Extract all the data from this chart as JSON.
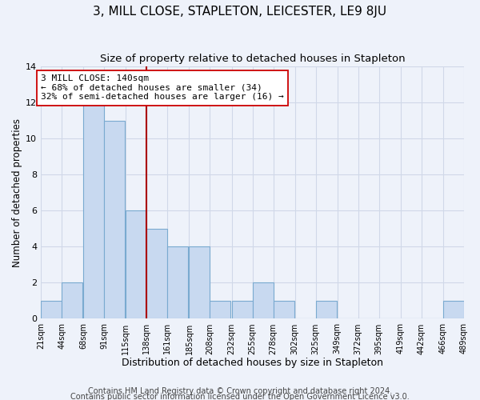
{
  "title": "3, MILL CLOSE, STAPLETON, LEICESTER, LE9 8JU",
  "subtitle": "Size of property relative to detached houses in Stapleton",
  "xlabel": "Distribution of detached houses by size in Stapleton",
  "ylabel": "Number of detached properties",
  "bar_color": "#c8d9f0",
  "bar_edgecolor": "#7aaad0",
  "bar_left_edges": [
    21,
    44,
    68,
    91,
    115,
    138,
    161,
    185,
    208,
    232,
    255,
    278,
    302,
    325,
    349,
    372,
    395,
    419,
    442,
    466
  ],
  "bar_heights": [
    1,
    2,
    12,
    11,
    6,
    5,
    4,
    4,
    1,
    1,
    2,
    1,
    0,
    1,
    0,
    0,
    0,
    0,
    0,
    1
  ],
  "bin_width": 23,
  "vline_x": 138,
  "vline_color": "#aa0000",
  "vline_linewidth": 1.5,
  "xtick_labels": [
    "21sqm",
    "44sqm",
    "68sqm",
    "91sqm",
    "115sqm",
    "138sqm",
    "161sqm",
    "185sqm",
    "208sqm",
    "232sqm",
    "255sqm",
    "278sqm",
    "302sqm",
    "325sqm",
    "349sqm",
    "372sqm",
    "395sqm",
    "419sqm",
    "442sqm",
    "466sqm",
    "489sqm"
  ],
  "xtick_positions": [
    21,
    44,
    68,
    91,
    115,
    138,
    161,
    185,
    208,
    232,
    255,
    278,
    302,
    325,
    349,
    372,
    395,
    419,
    442,
    466,
    489
  ],
  "ylim": [
    0,
    14
  ],
  "yticks": [
    0,
    2,
    4,
    6,
    8,
    10,
    12,
    14
  ],
  "annotation_text": "3 MILL CLOSE: 140sqm\n← 68% of detached houses are smaller (34)\n32% of semi-detached houses are larger (16) →",
  "annotation_box_edgecolor": "#cc0000",
  "annotation_box_facecolor": "#ffffff",
  "annotation_fontsize": 8.0,
  "footer_text1": "Contains HM Land Registry data © Crown copyright and database right 2024.",
  "footer_text2": "Contains public sector information licensed under the Open Government Licence v3.0.",
  "background_color": "#eef2fa",
  "grid_color": "#d0d8e8",
  "title_fontsize": 11,
  "subtitle_fontsize": 9.5,
  "xlabel_fontsize": 9,
  "ylabel_fontsize": 8.5,
  "footer_fontsize": 7
}
